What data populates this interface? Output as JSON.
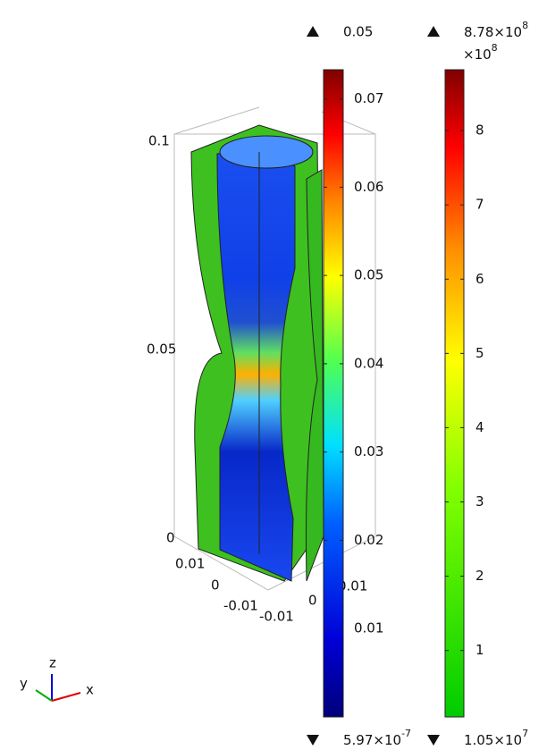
{
  "colorbars": [
    {
      "max_label": "0.05",
      "min_label": {
        "base": "5.97×10",
        "exponent": "-7"
      },
      "range": [
        0,
        0.0733
      ],
      "ticks": [
        0.01,
        0.02,
        0.03,
        0.04,
        0.05,
        0.06,
        0.07
      ]
    },
    {
      "max_label": {
        "base": "8.78×10",
        "exponent": "8"
      },
      "multiplier": {
        "base": "×10",
        "exponent": "8"
      },
      "min_label": {
        "base": "1.05×10",
        "exponent": "7"
      },
      "range": [
        0.105,
        8.82
      ],
      "ticks": [
        1,
        2,
        3,
        4,
        5,
        6,
        7,
        8
      ]
    }
  ],
  "axes": {
    "z_ticks": [
      "0.1",
      "0.05",
      "0"
    ],
    "y_ticks": [
      "0.01",
      "0",
      "-0.01"
    ],
    "x_ticks": [
      "-0.01",
      "0",
      "0.01"
    ]
  },
  "triad": {
    "x": "x",
    "y": "y",
    "z": "z"
  }
}
